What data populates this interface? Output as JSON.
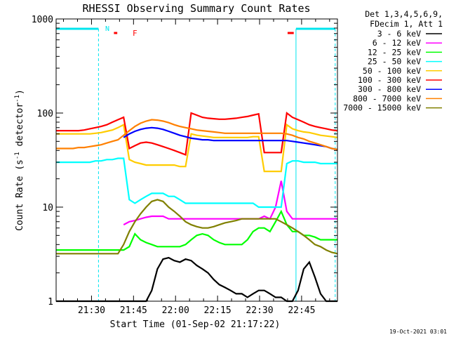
{
  "chart_data": {
    "type": "line",
    "title": "RHESSI Observing Summary Count Rates",
    "xlabel": "Start Time (01-Sep-02 21:17:22)",
    "ylabel": "Count Rate (s",
    "ylabel_sup1": "-1",
    "ylabel_mid": " detector",
    "ylabel_sup2": "-1",
    "ylabel_end": ")",
    "x_ticks": [
      "21:30",
      "21:45",
      "22:00",
      "22:15",
      "22:30",
      "22:45"
    ],
    "x_tick_minutes": [
      30,
      45,
      60,
      75,
      90,
      105
    ],
    "xlim_minutes": [
      17.37,
      117.8
    ],
    "y_scale": "log",
    "ylim": [
      1,
      1000
    ],
    "y_ticks": [
      "1",
      "10",
      "100",
      "1000"
    ],
    "legend_header": [
      "Det 1,3,4,5,6,9,",
      "FDecim 1, Att 1"
    ],
    "legend_position": "right",
    "series": [
      {
        "name": "3 - 6 keV",
        "color": "#000000",
        "values": [
          1,
          1,
          1,
          1,
          1,
          1,
          1,
          1,
          1,
          1,
          1,
          1,
          1,
          1,
          1,
          1,
          1,
          1.3,
          2.2,
          2.8,
          2.9,
          2.7,
          2.6,
          2.8,
          2.7,
          2.4,
          2.2,
          2.0,
          1.7,
          1.5,
          1.4,
          1.3,
          1.2,
          1.2,
          1.1,
          1.2,
          1.3,
          1.3,
          1.2,
          1.1,
          1.1,
          1.0,
          1.0,
          1.3,
          2.2,
          2.6,
          1.8,
          1.2,
          1.0,
          1.0,
          1.0
        ]
      },
      {
        "name": "6 - 12 keV",
        "color": "#ff00ff",
        "values": [
          null,
          null,
          null,
          null,
          null,
          null,
          null,
          null,
          null,
          null,
          null,
          null,
          6.5,
          7.0,
          7.2,
          7.5,
          7.8,
          8.0,
          8.0,
          8.0,
          7.5,
          7.5,
          7.5,
          7.5,
          7.5,
          7.5,
          7.5,
          7.5,
          7.5,
          7.5,
          7.5,
          7.5,
          7.5,
          7.5,
          7.5,
          7.5,
          7.5,
          8.0,
          7.5,
          10.0,
          19.0,
          9.0,
          7.5,
          7.5,
          7.5,
          7.5,
          7.5,
          7.5,
          7.5,
          7.5,
          7.5
        ]
      },
      {
        "name": "12 - 25 keV",
        "color": "#00ff00",
        "values": [
          3.5,
          3.5,
          3.5,
          3.5,
          3.5,
          3.5,
          3.5,
          3.5,
          3.5,
          3.5,
          3.5,
          3.5,
          3.5,
          3.8,
          5.2,
          4.5,
          4.2,
          4.0,
          3.8,
          3.8,
          3.8,
          3.8,
          3.8,
          4.0,
          4.5,
          5.0,
          5.2,
          5.0,
          4.5,
          4.2,
          4.0,
          4.0,
          4.0,
          4.0,
          4.5,
          5.5,
          6.0,
          6.0,
          5.5,
          7.0,
          9.0,
          6.5,
          5.5,
          5.5,
          5.0,
          5.0,
          4.8,
          4.5,
          4.5,
          4.5,
          4.5
        ]
      },
      {
        "name": "25 - 50 keV",
        "color": "#00ffff",
        "values": [
          30,
          30,
          30,
          30,
          30,
          30,
          30,
          31,
          31,
          32,
          32,
          33,
          33,
          12,
          11,
          12,
          13,
          14,
          14,
          14,
          13,
          13,
          12,
          11,
          11,
          11,
          11,
          11,
          11,
          11,
          11,
          11,
          11,
          11,
          11,
          11,
          10,
          10,
          10,
          10,
          10,
          29,
          31,
          31,
          30,
          30,
          30,
          29,
          29,
          29,
          29
        ]
      },
      {
        "name": "50 - 100 keV",
        "color": "#ffcc00",
        "values": [
          60,
          60,
          60,
          60,
          60,
          60,
          60,
          61,
          62,
          64,
          66,
          70,
          75,
          32,
          30,
          29,
          28,
          28,
          28,
          28,
          28,
          28,
          27,
          27,
          60,
          58,
          57,
          56,
          55,
          55,
          55,
          55,
          55,
          55,
          55,
          56,
          56,
          24,
          24,
          24,
          24,
          75,
          68,
          65,
          63,
          62,
          60,
          58,
          57,
          56,
          55
        ]
      },
      {
        "name": "100 - 300 keV",
        "color": "#ff0000",
        "values": [
          65,
          65,
          65,
          65,
          65,
          66,
          68,
          70,
          72,
          75,
          80,
          85,
          90,
          42,
          45,
          48,
          49,
          48,
          46,
          44,
          42,
          40,
          38,
          36,
          100,
          95,
          90,
          88,
          87,
          86,
          86,
          87,
          88,
          90,
          92,
          95,
          98,
          38,
          38,
          38,
          38,
          100,
          90,
          85,
          80,
          75,
          72,
          70,
          68,
          66,
          65
        ]
      },
      {
        "name": "300 - 800 keV",
        "color": "#0000ff",
        "values": [
          null,
          null,
          null,
          null,
          null,
          null,
          null,
          null,
          null,
          null,
          null,
          null,
          55,
          60,
          64,
          67,
          69,
          70,
          69,
          67,
          64,
          61,
          58,
          56,
          54,
          53,
          52,
          52,
          51,
          51,
          51,
          51,
          51,
          51,
          51,
          51,
          51,
          51,
          51,
          51,
          51,
          51,
          50,
          49,
          48,
          47,
          46,
          45,
          44,
          42,
          41
        ]
      },
      {
        "name": "800 - 7000 keV",
        "color": "#ff8000",
        "values": [
          42,
          42,
          42,
          42,
          43,
          43,
          44,
          45,
          46,
          48,
          50,
          52,
          58,
          65,
          72,
          78,
          82,
          85,
          84,
          82,
          79,
          75,
          72,
          70,
          68,
          66,
          65,
          64,
          63,
          62,
          61,
          61,
          61,
          61,
          61,
          61,
          61,
          61,
          61,
          61,
          61,
          60,
          58,
          55,
          53,
          50,
          48,
          46,
          44,
          42,
          41
        ]
      },
      {
        "name": "7000 - 15000 keV",
        "color": "#808000",
        "values": [
          3.2,
          3.2,
          3.2,
          3.2,
          3.2,
          3.2,
          3.2,
          3.2,
          3.2,
          3.2,
          3.2,
          3.2,
          4.0,
          5.5,
          7.0,
          8.5,
          10.0,
          11.5,
          12.0,
          11.5,
          10.0,
          9.0,
          8.0,
          7.0,
          6.5,
          6.2,
          6.0,
          6.0,
          6.2,
          6.5,
          6.8,
          7.0,
          7.2,
          7.5,
          7.5,
          7.5,
          7.5,
          7.5,
          7.5,
          7.5,
          7.0,
          6.5,
          6.0,
          5.5,
          5.0,
          4.5,
          4.0,
          3.8,
          3.5,
          3.3,
          3.2
        ]
      }
    ],
    "series_x_start_minutes": 17.37,
    "series_x_end_minutes": 117.8,
    "annotations": {
      "attenuator_label": "F",
      "night_label": "N",
      "timestamp": "19-Oct-2021 03:01"
    },
    "grid": false
  }
}
